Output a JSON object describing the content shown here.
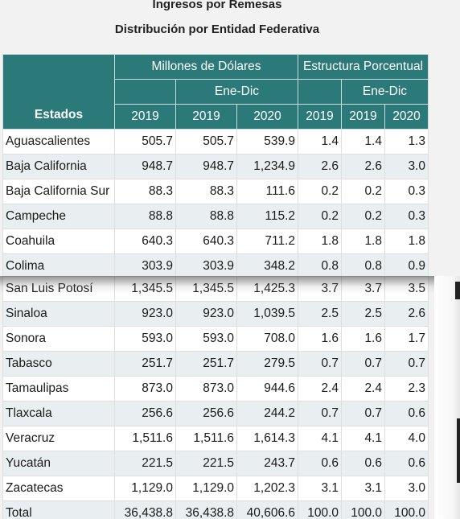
{
  "title": "Ingresos por Remesas",
  "subtitle": "Distribución por Entidad Federativa",
  "header": {
    "estados": "Estados",
    "millones": "Millones de Dólares",
    "estructura": "Estructura Porcentual",
    "ene_dic_1": "Ene-Dic",
    "ene_dic_2": "Ene-Dic",
    "years": [
      "2019",
      "2019",
      "2020",
      "2019",
      "2019",
      "2020"
    ]
  },
  "rows_top": [
    [
      "Aguascalientes",
      "505.7",
      "505.7",
      "539.9",
      "1.4",
      "1.4",
      "1.3"
    ],
    [
      "Baja California",
      "948.7",
      "948.7",
      "1,234.9",
      "2.6",
      "2.6",
      "3.0"
    ],
    [
      "Baja California Sur",
      "88.3",
      "88.3",
      "111.6",
      "0.2",
      "0.2",
      "0.3"
    ],
    [
      "Campeche",
      "88.8",
      "88.8",
      "115.2",
      "0.2",
      "0.2",
      "0.3"
    ],
    [
      "Coahuila",
      "640.3",
      "640.3",
      "711.2",
      "1.8",
      "1.8",
      "1.8"
    ],
    [
      "Colima",
      "303.9",
      "303.9",
      "348.2",
      "0.8",
      "0.8",
      "0.9"
    ]
  ],
  "rows_bottom": [
    [
      "San Luis Potosí",
      "1,345.5",
      "1,345.5",
      "1,425.3",
      "3.7",
      "3.7",
      "3.5"
    ],
    [
      "Sinaloa",
      "923.0",
      "923.0",
      "1,039.5",
      "2.5",
      "2.5",
      "2.6"
    ],
    [
      "Sonora",
      "593.0",
      "593.0",
      "708.0",
      "1.6",
      "1.6",
      "1.7"
    ],
    [
      "Tabasco",
      "251.7",
      "251.7",
      "279.5",
      "0.7",
      "0.7",
      "0.7"
    ],
    [
      "Tamaulipas",
      "873.0",
      "873.0",
      "944.6",
      "2.4",
      "2.4",
      "2.3"
    ],
    [
      "Tlaxcala",
      "256.6",
      "256.6",
      "244.2",
      "0.7",
      "0.7",
      "0.6"
    ],
    [
      "Veracruz",
      "1,511.6",
      "1,511.6",
      "1,614.3",
      "4.1",
      "4.1",
      "4.0"
    ],
    [
      "Yucatán",
      "221.5",
      "221.5",
      "243.7",
      "0.6",
      "0.6",
      "0.6"
    ],
    [
      "Zacatecas",
      "1,129.0",
      "1,129.0",
      "1,202.3",
      "3.1",
      "3.1",
      "3.0"
    ],
    [
      "Total",
      "36,438.8",
      "36,438.8",
      "40,606.6",
      "100.0",
      "100.0",
      "100.0"
    ]
  ]
}
